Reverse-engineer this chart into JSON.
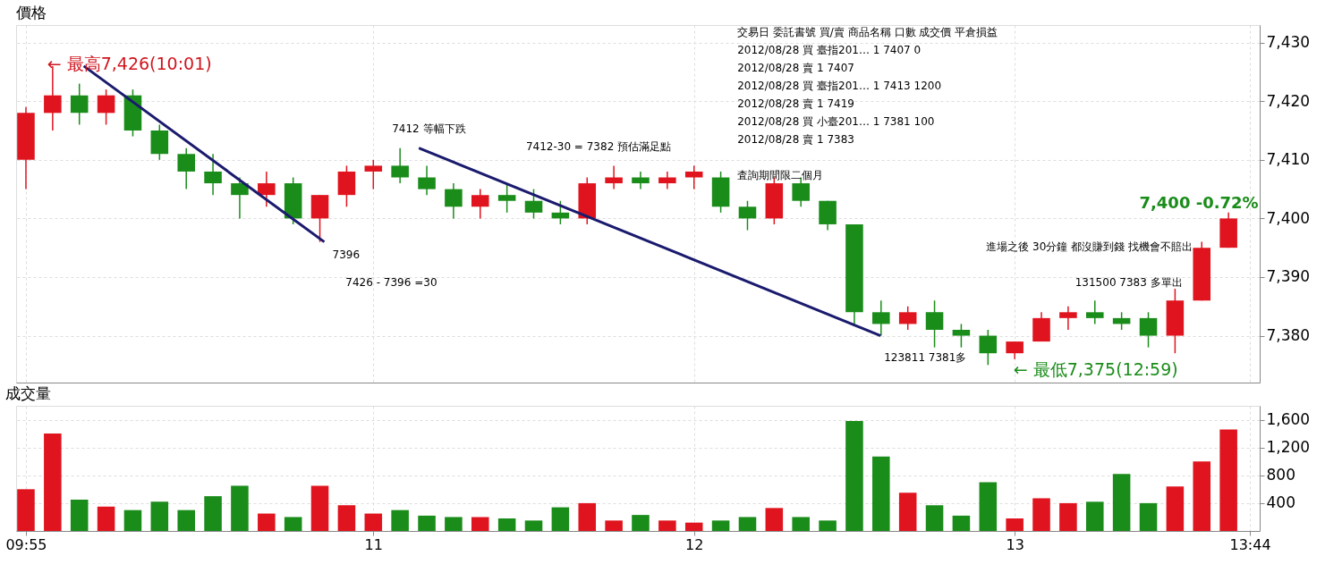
{
  "chart_data": [
    {
      "type": "candlestick",
      "title": "價格",
      "x": [
        9.9167,
        10.0,
        10.0833,
        10.1667,
        10.25,
        10.3333,
        10.4167,
        10.5,
        10.5833,
        10.6667,
        10.75,
        10.8333,
        10.9167,
        11.0,
        11.0833,
        11.1667,
        11.25,
        11.3333,
        11.4167,
        11.5,
        11.5833,
        11.6667,
        11.75,
        11.8333,
        11.9167,
        12.0,
        12.0833,
        12.1667,
        12.25,
        12.3333,
        12.4167,
        12.5,
        12.5833,
        12.6667,
        12.75,
        12.8333,
        12.9167,
        13.0,
        13.0833,
        13.1667,
        13.25,
        13.3333,
        13.4167,
        13.5,
        13.5833,
        13.6667
      ],
      "ohlc": [
        [
          7410,
          7419,
          7405,
          7418
        ],
        [
          7418,
          7426,
          7415,
          7421
        ],
        [
          7421,
          7423,
          7416,
          7418
        ],
        [
          7418,
          7422,
          7416,
          7421
        ],
        [
          7421,
          7422,
          7414,
          7415
        ],
        [
          7415,
          7416,
          7410,
          7411
        ],
        [
          7411,
          7412,
          7405,
          7408
        ],
        [
          7408,
          7411,
          7404,
          7406
        ],
        [
          7406,
          7407,
          7400,
          7404
        ],
        [
          7404,
          7408,
          7402,
          7406
        ],
        [
          7406,
          7407,
          7399,
          7400
        ],
        [
          7400,
          7404,
          7396,
          7404
        ],
        [
          7404,
          7409,
          7402,
          7408
        ],
        [
          7408,
          7410,
          7405,
          7409
        ],
        [
          7409,
          7412,
          7406,
          7407
        ],
        [
          7407,
          7409,
          7404,
          7405
        ],
        [
          7405,
          7406,
          7400,
          7402
        ],
        [
          7402,
          7405,
          7400,
          7404
        ],
        [
          7404,
          7406,
          7401,
          7403
        ],
        [
          7403,
          7405,
          7400,
          7401
        ],
        [
          7401,
          7403,
          7399,
          7400
        ],
        [
          7400,
          7407,
          7399,
          7406
        ],
        [
          7406,
          7409,
          7405,
          7407
        ],
        [
          7407,
          7408,
          7405,
          7406
        ],
        [
          7406,
          7408,
          7405,
          7407
        ],
        [
          7407,
          7409,
          7405,
          7408
        ],
        [
          7407,
          7408,
          7401,
          7402
        ],
        [
          7402,
          7403,
          7398,
          7400
        ],
        [
          7400,
          7407,
          7399,
          7406
        ],
        [
          7406,
          7407,
          7402,
          7403
        ],
        [
          7403,
          7403,
          7398,
          7399
        ],
        [
          7399,
          7399,
          7382,
          7384
        ],
        [
          7384,
          7386,
          7380,
          7382
        ],
        [
          7382,
          7385,
          7381,
          7384
        ],
        [
          7384,
          7386,
          7378,
          7381
        ],
        [
          7381,
          7382,
          7378,
          7380
        ],
        [
          7380,
          7381,
          7375,
          7377
        ],
        [
          7377,
          7379,
          7376,
          7379
        ],
        [
          7379,
          7384,
          7379,
          7383
        ],
        [
          7383,
          7385,
          7381,
          7384
        ],
        [
          7384,
          7386,
          7382,
          7383
        ],
        [
          7383,
          7384,
          7381,
          7382
        ],
        [
          7383,
          7384,
          7378,
          7380
        ],
        [
          7380,
          7388,
          7377,
          7386
        ],
        [
          7386,
          7396,
          7386,
          7395
        ],
        [
          7395,
          7401,
          7395,
          7400
        ]
      ],
      "colors": [
        "#e0141e",
        "#e0141e",
        "#1a8c1a",
        "#e0141e",
        "#1a8c1a",
        "#1a8c1a",
        "#1a8c1a",
        "#1a8c1a",
        "#1a8c1a",
        "#e0141e",
        "#1a8c1a",
        "#e0141e",
        "#e0141e",
        "#e0141e",
        "#1a8c1a",
        "#1a8c1a",
        "#1a8c1a",
        "#e0141e",
        "#1a8c1a",
        "#1a8c1a",
        "#1a8c1a",
        "#e0141e",
        "#e0141e",
        "#1a8c1a",
        "#e0141e",
        "#e0141e",
        "#1a8c1a",
        "#1a8c1a",
        "#e0141e",
        "#1a8c1a",
        "#1a8c1a",
        "#1a8c1a",
        "#1a8c1a",
        "#e0141e",
        "#1a8c1a",
        "#1a8c1a",
        "#1a8c1a",
        "#e0141e",
        "#e0141e",
        "#e0141e",
        "#1a8c1a",
        "#1a8c1a",
        "#1a8c1a",
        "#e0141e",
        "#e0141e",
        "#e0141e"
      ],
      "series": [
        {
          "type": "line",
          "color": "#1a1a6e",
          "x": [
            10.097,
            10.847
          ],
          "values": [
            7426,
            7396
          ]
        },
        {
          "type": "line",
          "color": "#1a1a6e",
          "x": [
            11.142,
            12.582
          ],
          "values": [
            7412,
            7380
          ]
        }
      ],
      "xlim": [
        9.9,
        13.75
      ],
      "ylim": [
        7372,
        7433
      ],
      "yticks": [
        {
          "value": 7380,
          "label": "7,380"
        },
        {
          "value": 7390,
          "label": "7,390"
        },
        {
          "value": 7400,
          "label": "7,400"
        },
        {
          "value": 7410,
          "label": "7,410"
        },
        {
          "value": 7420,
          "label": "7,420"
        },
        {
          "value": 7430,
          "label": "7,430"
        }
      ],
      "grid": true,
      "tick_labels": "y",
      "annotations": [
        "← 最高7,426(10:01)",
        {
          "text": "7396",
          "x": 10.85,
          "y": 7396
        },
        {
          "text": "7412  等幅下跌",
          "x": 11.142,
          "y": 7412
        },
        "123811   7381多",
        {
          "text": "131500  7383  多單出",
          "x": 13.3,
          "y": 7383
        },
        "← 最低7,375(12:59)",
        "7,400 -0.72%",
        "7426 - 7396  =30",
        "7412-30 = 7382  預估滿足點",
        "進場之後  30分鐘 都沒賺到錢  找機會不賠出",
        "交易日   委託書號   買/賣   商品名稱   口數   成交價   平倉損益",
        "2012/08/28   買   臺指201…   1   7407   0",
        "2012/08/28   賣   1   7407",
        "2012/08/28   買   臺指201…   1   7413   1200",
        "2012/08/28   賣   1   7419",
        "2012/08/28   買   小臺201…   1   7381   100",
        "2012/08/28   賣   1   7383",
        "査詢期間限二個月"
      ]
    },
    {
      "type": "bar",
      "title": "成交量",
      "x": [
        9.9167,
        10.0,
        10.0833,
        10.1667,
        10.25,
        10.3333,
        10.4167,
        10.5,
        10.5833,
        10.6667,
        10.75,
        10.8333,
        10.9167,
        11.0,
        11.0833,
        11.1667,
        11.25,
        11.3333,
        11.4167,
        11.5,
        11.5833,
        11.6667,
        11.75,
        11.8333,
        11.9167,
        12.0,
        12.0833,
        12.1667,
        12.25,
        12.3333,
        12.4167,
        12.5,
        12.5833,
        12.6667,
        12.75,
        12.8333,
        12.9167,
        13.0,
        13.0833,
        13.1667,
        13.25,
        13.3333,
        13.4167,
        13.5,
        13.5833,
        13.6667
      ],
      "values": [
        600,
        1400,
        450,
        350,
        300,
        420,
        300,
        500,
        650,
        250,
        200,
        650,
        370,
        250,
        300,
        220,
        200,
        200,
        180,
        150,
        340,
        400,
        150,
        230,
        150,
        120,
        150,
        200,
        330,
        200,
        150,
        1580,
        1070,
        550,
        370,
        220,
        700,
        180,
        470,
        400,
        420,
        820,
        400,
        640,
        1000,
        1460
      ],
      "colors": [
        "#e0141e",
        "#e0141e",
        "#1a8c1a",
        "#e0141e",
        "#1a8c1a",
        "#1a8c1a",
        "#1a8c1a",
        "#1a8c1a",
        "#1a8c1a",
        "#e0141e",
        "#1a8c1a",
        "#e0141e",
        "#e0141e",
        "#e0141e",
        "#1a8c1a",
        "#1a8c1a",
        "#1a8c1a",
        "#e0141e",
        "#1a8c1a",
        "#1a8c1a",
        "#1a8c1a",
        "#e0141e",
        "#e0141e",
        "#1a8c1a",
        "#e0141e",
        "#e0141e",
        "#1a8c1a",
        "#1a8c1a",
        "#e0141e",
        "#1a8c1a",
        "#1a8c1a",
        "#1a8c1a",
        "#1a8c1a",
        "#e0141e",
        "#1a8c1a",
        "#1a8c1a",
        "#1a8c1a",
        "#e0141e",
        "#e0141e",
        "#e0141e",
        "#1a8c1a",
        "#1a8c1a",
        "#1a8c1a",
        "#e0141e",
        "#e0141e",
        "#e0141e"
      ],
      "xlim": [
        9.9,
        13.75
      ],
      "xticks": [
        {
          "value": 9.9167,
          "label": "09:55"
        },
        11,
        12,
        13,
        {
          "value": 13.7333,
          "label": "13:44"
        }
      ],
      "ylim": [
        0,
        1800
      ],
      "yticks": [
        {
          "value": 400,
          "label": "400"
        },
        {
          "value": 800,
          "label": "800"
        },
        {
          "value": 1200,
          "label": "1,200"
        },
        {
          "value": 1600,
          "label": "1,600"
        }
      ],
      "grid": true
    }
  ]
}
